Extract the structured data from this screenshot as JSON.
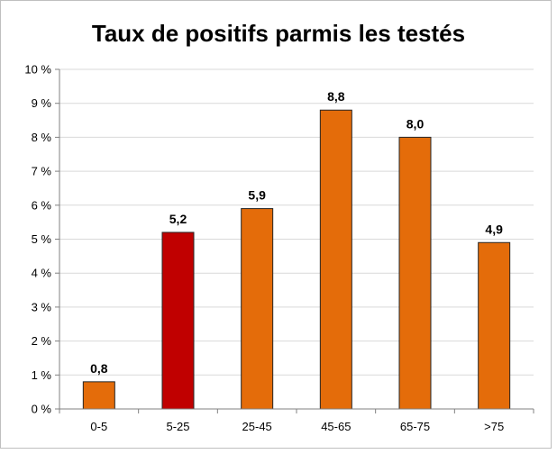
{
  "chart_data": {
    "type": "bar",
    "title": "Taux de positifs parmis les testés",
    "xlabel": "",
    "ylabel": "",
    "categories": [
      "0-5",
      "5-25",
      "25-45",
      "45-65",
      "65-75",
      ">75"
    ],
    "values": [
      0.8,
      5.2,
      5.9,
      8.8,
      8.0,
      4.9
    ],
    "data_labels": [
      "0,8",
      "5,2",
      "5,9",
      "8,8",
      "8,0",
      "4,9"
    ],
    "highlight_index": 1,
    "ylim": [
      0,
      10
    ],
    "y_ticks": [
      0,
      1,
      2,
      3,
      4,
      5,
      6,
      7,
      8,
      9,
      10
    ],
    "y_tick_labels": [
      "0 %",
      "1 %",
      "2 %",
      "3 %",
      "4 %",
      "5 %",
      "6 %",
      "7 %",
      "8 %",
      "9 %",
      "10 %"
    ],
    "grid": true,
    "legend": "none",
    "colors": {
      "bar": "#e46c0a",
      "highlight": "#c00000",
      "bar_border": "#262626",
      "grid": "#d9d9d9",
      "axis": "#808080"
    }
  }
}
